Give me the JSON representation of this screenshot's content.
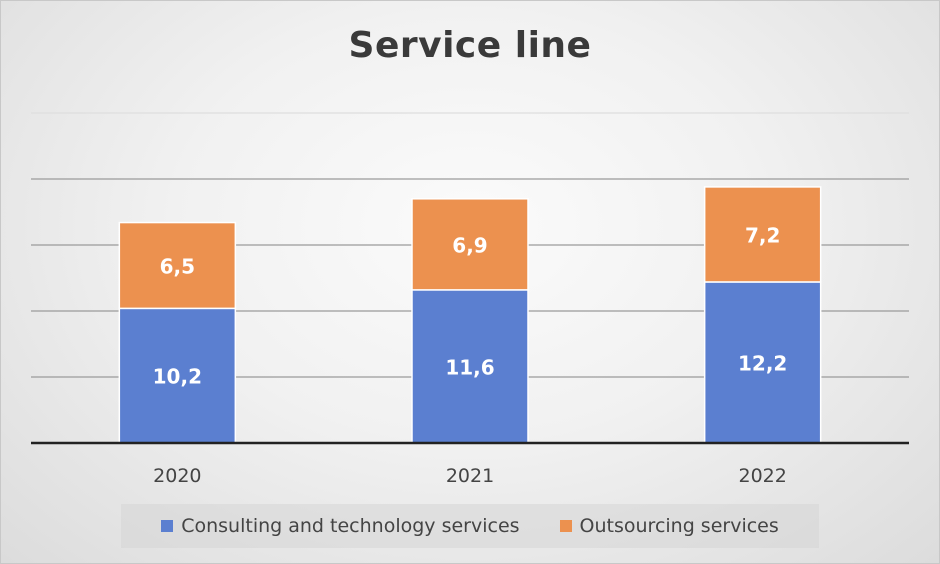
{
  "chart_data": {
    "type": "bar",
    "stacked": true,
    "title": "Service line",
    "categories": [
      "2020",
      "2021",
      "2022"
    ],
    "series": [
      {
        "name": "Consulting and technology services",
        "values": [
          10.2,
          11.6,
          12.2
        ],
        "labels": [
          "10,2",
          "11,6",
          "12,2"
        ],
        "color": "#5b7fd0"
      },
      {
        "name": "Outsourcing services",
        "values": [
          6.5,
          6.9,
          7.2
        ],
        "labels": [
          "6,5",
          "6,9",
          "7,2"
        ],
        "color": "#ec914f"
      }
    ],
    "ylim": [
      0,
      25
    ],
    "grid": true,
    "legend_position": "bottom"
  }
}
